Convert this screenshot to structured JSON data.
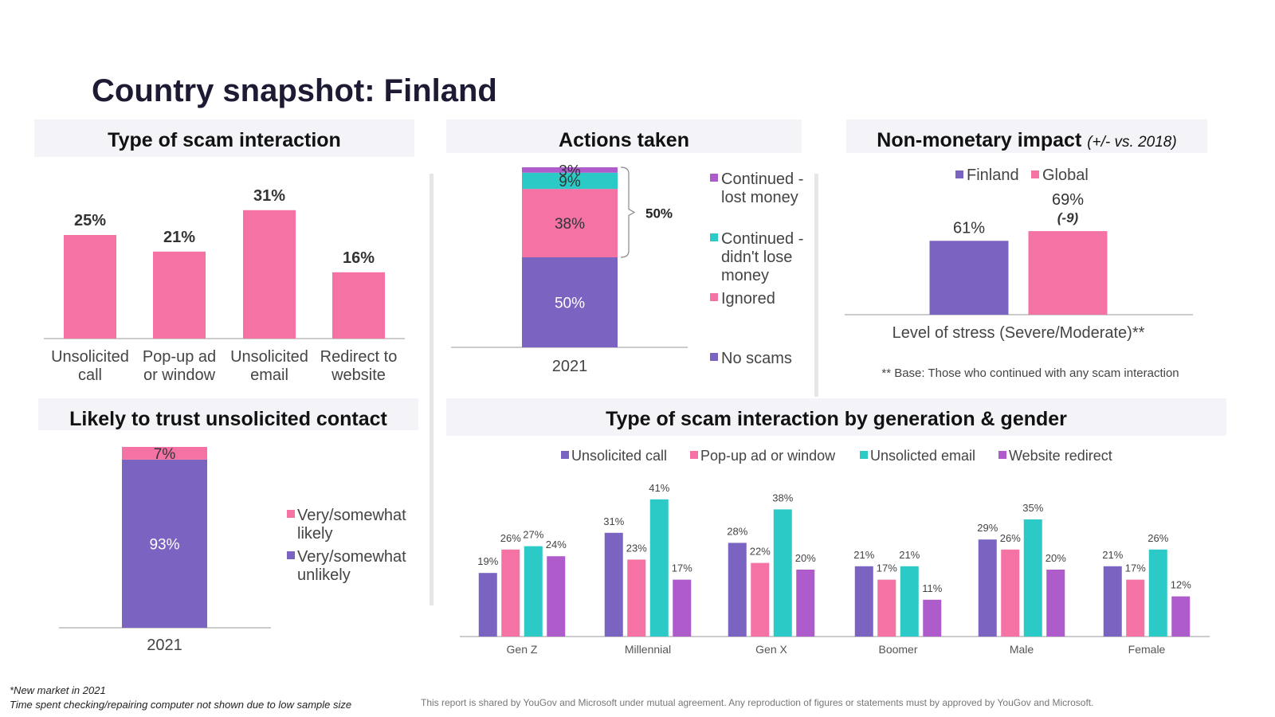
{
  "page": {
    "title": "Country snapshot: Finland",
    "footnote_1": "*New market in 2021",
    "footnote_2": "Time spent checking/repairing computer not shown due to low sample size",
    "disclaimer": "This report is shared by YouGov and Microsoft under mutual agreement. Any reproduction of figures or statements must by approved by YouGov and Microsoft."
  },
  "colors": {
    "pink": "#f472a4",
    "purple": "#7b63c2",
    "teal": "#2ccac6",
    "violet": "#ae5ccb",
    "header_bg": "#f4f4f8"
  },
  "chart_data": [
    {
      "id": "type_of_scam",
      "type": "bar",
      "title": "Type of scam interaction",
      "categories": [
        "Unsolicited call",
        "Pop-up ad or window",
        "Unsolicited email",
        "Redirect to website"
      ],
      "category_lines": [
        [
          "Unsolicited",
          "call"
        ],
        [
          "Pop-up ad",
          "or window"
        ],
        [
          "Unsolicited",
          "email"
        ],
        [
          "Redirect to",
          "website"
        ]
      ],
      "values": [
        25,
        21,
        31,
        16
      ],
      "labels": [
        "25%",
        "21%",
        "31%",
        "16%"
      ],
      "ylim": [
        0,
        35
      ]
    },
    {
      "id": "actions_taken",
      "type": "bar",
      "stacked": true,
      "title": "Actions taken",
      "categories": [
        "2021"
      ],
      "series": [
        {
          "name": "No scams",
          "values": [
            50
          ],
          "label": "50%"
        },
        {
          "name": "Ignored",
          "values": [
            38
          ],
          "label": "38%"
        },
        {
          "name": "Continued - didn't lose money",
          "values": [
            9
          ],
          "label": "9%"
        },
        {
          "name": "Continued - lost money",
          "values": [
            3
          ],
          "label": "3%"
        }
      ],
      "legend": [
        {
          "lines": [
            "Continued -",
            "lost money"
          ]
        },
        {
          "lines": [
            "Continued -",
            "didn't lose",
            "money"
          ]
        },
        {
          "lines": [
            "Ignored"
          ]
        },
        {
          "lines": [
            "No scams"
          ]
        }
      ],
      "bracket_label": "50%"
    },
    {
      "id": "non_monetary_impact",
      "type": "bar",
      "title": "Non-monetary impact",
      "subtitle": "(+/- vs. 2018)",
      "categories": [
        "Level of stress (Severe/Moderate)**"
      ],
      "series": [
        {
          "name": "Finland",
          "values": [
            61
          ],
          "label": "61%"
        },
        {
          "name": "Global",
          "values": [
            69
          ],
          "label": "69%",
          "change": "(-9)"
        }
      ],
      "note": "** Base: Those who continued with any scam interaction"
    },
    {
      "id": "trust_unsolicited",
      "type": "bar",
      "stacked": true,
      "title": "Likely to trust unsolicited contact",
      "categories": [
        "2021"
      ],
      "series": [
        {
          "name": "Very/somewhat unlikely",
          "values": [
            93
          ],
          "label": "93%"
        },
        {
          "name": "Very/somewhat likely",
          "values": [
            7
          ],
          "label": "7%"
        }
      ],
      "legend": [
        {
          "lines": [
            "Very/somewhat",
            "likely"
          ]
        },
        {
          "lines": [
            "Very/somewhat",
            "unlikely"
          ]
        }
      ]
    },
    {
      "id": "by_generation_gender",
      "type": "bar",
      "title": "Type of scam interaction by generation & gender",
      "categories": [
        "Gen Z",
        "Millennial",
        "Gen X",
        "Boomer",
        "Male",
        "Female"
      ],
      "series": [
        {
          "name": "Unsolicited call",
          "values": [
            19,
            31,
            28,
            21,
            29,
            21
          ]
        },
        {
          "name": "Pop-up ad or window",
          "values": [
            26,
            23,
            22,
            17,
            26,
            17
          ]
        },
        {
          "name": "Unsolicted email",
          "values": [
            27,
            41,
            38,
            21,
            35,
            26
          ]
        },
        {
          "name": "Website redirect",
          "values": [
            24,
            17,
            20,
            11,
            20,
            12
          ]
        }
      ],
      "ylim": [
        0,
        45
      ]
    }
  ]
}
